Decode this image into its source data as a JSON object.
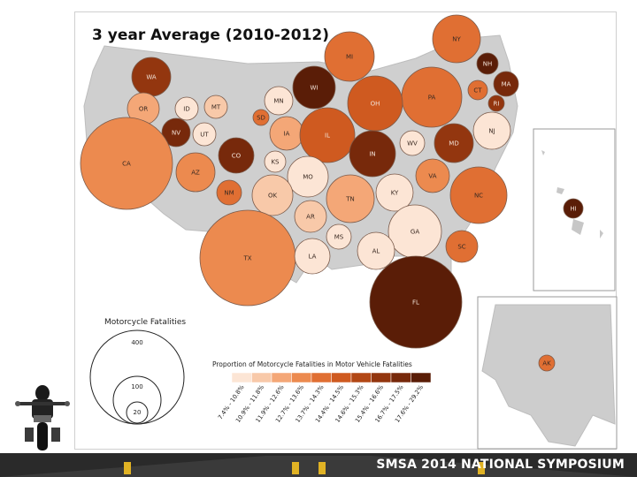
{
  "title": "3 year Average (2010-2012)",
  "footer": "SMSA 2014 NATIONAL SYMPOSIUM",
  "legend_size": {
    "title": "Motorcycle Fatalities",
    "values": [
      "400",
      "100",
      "20"
    ]
  },
  "legend_color": {
    "title": "Proportion of Motorcycle Fatalities in Motor Vehicle Fatalities",
    "classes": [
      {
        "label": "7.4% - 10.8%",
        "color": "#fce5d5"
      },
      {
        "label": "10.9% - 11.8%",
        "color": "#f8c9a9"
      },
      {
        "label": "11.9% - 12.6%",
        "color": "#f4a777"
      },
      {
        "label": "12.7% - 13.6%",
        "color": "#ec8a4f"
      },
      {
        "label": "13.7% - 14.3%",
        "color": "#e06f33"
      },
      {
        "label": "14.4% - 14.5%",
        "color": "#cf5a20"
      },
      {
        "label": "14.6% - 15.3%",
        "color": "#b24715"
      },
      {
        "label": "15.4% - 16.6%",
        "color": "#93360f"
      },
      {
        "label": "16.7% - 17.5%",
        "color": "#77290b"
      },
      {
        "label": "17.6% - 29.2%",
        "color": "#5a1d07"
      }
    ]
  },
  "states": [
    {
      "abbr": "NY",
      "color": "#e06f33"
    },
    {
      "abbr": "MI",
      "color": "#e06f33"
    },
    {
      "abbr": "NH",
      "color": "#5a1d07"
    },
    {
      "abbr": "WA",
      "color": "#93360f"
    },
    {
      "abbr": "MA",
      "color": "#77290b"
    },
    {
      "abbr": "WI",
      "color": "#5a1d07"
    },
    {
      "abbr": "CT",
      "color": "#e06f33"
    },
    {
      "abbr": "PA",
      "color": "#e06f33"
    },
    {
      "abbr": "OH",
      "color": "#cf5a20"
    },
    {
      "abbr": "RI",
      "color": "#93360f"
    },
    {
      "abbr": "MN",
      "color": "#fce5d5"
    },
    {
      "abbr": "OR",
      "color": "#f4a777"
    },
    {
      "abbr": "ID",
      "color": "#fce5d5"
    },
    {
      "abbr": "MT",
      "color": "#f8c9a9"
    },
    {
      "abbr": "SD",
      "color": "#e06f33"
    },
    {
      "abbr": "NJ",
      "color": "#fce5d5"
    },
    {
      "abbr": "NV",
      "color": "#77290b"
    },
    {
      "abbr": "UT",
      "color": "#fce5d5"
    },
    {
      "abbr": "IA",
      "color": "#f4a777"
    },
    {
      "abbr": "IL",
      "color": "#cf5a20"
    },
    {
      "abbr": "WV",
      "color": "#fce5d5"
    },
    {
      "abbr": "MD",
      "color": "#93360f"
    },
    {
      "abbr": "CA",
      "color": "#ec8a4f"
    },
    {
      "abbr": "CO",
      "color": "#77290b"
    },
    {
      "abbr": "KS",
      "color": "#fce5d5"
    },
    {
      "abbr": "IN",
      "color": "#77290b"
    },
    {
      "abbr": "AZ",
      "color": "#ec8a4f"
    },
    {
      "abbr": "MO",
      "color": "#fce5d5"
    },
    {
      "abbr": "VA",
      "color": "#ec8a4f"
    },
    {
      "abbr": "NM",
      "color": "#e06f33"
    },
    {
      "abbr": "OK",
      "color": "#f8c9a9"
    },
    {
      "abbr": "KY",
      "color": "#fce5d5"
    },
    {
      "abbr": "TN",
      "color": "#f4a777"
    },
    {
      "abbr": "NC",
      "color": "#e06f33"
    },
    {
      "abbr": "HI",
      "color": "#5a1d07"
    },
    {
      "abbr": "AR",
      "color": "#f8c9a9"
    },
    {
      "abbr": "GA",
      "color": "#fce5d5"
    },
    {
      "abbr": "MS",
      "color": "#fce5d5"
    },
    {
      "abbr": "AL",
      "color": "#fce5d5"
    },
    {
      "abbr": "SC",
      "color": "#e06f33"
    },
    {
      "abbr": "TX",
      "color": "#ec8a4f"
    },
    {
      "abbr": "LA",
      "color": "#fce5d5"
    },
    {
      "abbr": "FL",
      "color": "#5a1d07"
    },
    {
      "abbr": "AK",
      "color": "#e06f33"
    }
  ]
}
